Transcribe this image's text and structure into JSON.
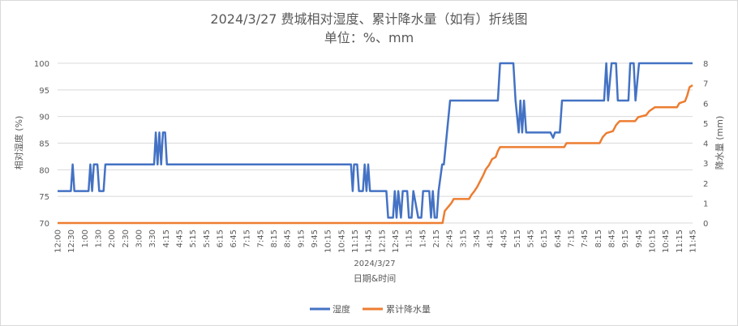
{
  "chart_data": {
    "type": "line",
    "title": "2024/3/27 费城相对湿度、累计降水量（如有）折线图",
    "subtitle": "单位：%、mm",
    "xlabel_group": "2024/3/27",
    "xlabel": "日期&时间",
    "ylabel_left": "相对湿度 (%)",
    "ylabel_right": "降水量 (mm)",
    "ylim_left": [
      70,
      100
    ],
    "ylim_right": [
      0,
      8
    ],
    "y_ticks_left": [
      "70",
      "75",
      "80",
      "85",
      "90",
      "95",
      "100"
    ],
    "y_ticks_right": [
      "0",
      "1",
      "2",
      "3",
      "4",
      "5",
      "6",
      "7",
      "8"
    ],
    "x_ticks": [
      "12:00",
      "12:30",
      "1:00",
      "1:30",
      "2:00",
      "2:30",
      "3:00",
      "3:30",
      "4:15",
      "4:45",
      "5:15",
      "5:45",
      "6:15",
      "6:45",
      "7:15",
      "7:45",
      "8:15",
      "8:45",
      "9:15",
      "9:45",
      "10:15",
      "10:45",
      "11:15",
      "11:45",
      "12:15",
      "12:45",
      "1:15",
      "1:45",
      "2:15",
      "2:45",
      "3:15",
      "3:45",
      "4:15",
      "4:45",
      "5:15",
      "5:45",
      "6:15",
      "6:45",
      "7:15",
      "7:45",
      "8:15",
      "8:45",
      "9:15",
      "9:45",
      "10:15",
      "10:45",
      "11:15",
      "11:45"
    ],
    "x_minutes_range": [
      0,
      1435
    ],
    "grid": true,
    "legend_position": "bottom",
    "series": [
      {
        "name": "湿度",
        "axis": "left",
        "color": "#4472c4",
        "points": [
          [
            0,
            76
          ],
          [
            30,
            76
          ],
          [
            34,
            81
          ],
          [
            38,
            76
          ],
          [
            70,
            76
          ],
          [
            74,
            81
          ],
          [
            78,
            76
          ],
          [
            82,
            81
          ],
          [
            90,
            81
          ],
          [
            94,
            76
          ],
          [
            104,
            76
          ],
          [
            108,
            81
          ],
          [
            218,
            81
          ],
          [
            222,
            87
          ],
          [
            226,
            81
          ],
          [
            230,
            87
          ],
          [
            234,
            81
          ],
          [
            238,
            87
          ],
          [
            243,
            87
          ],
          [
            247,
            81
          ],
          [
            613,
            81
          ],
          [
            647,
            81
          ],
          [
            663,
            81
          ],
          [
            667,
            76
          ],
          [
            670,
            81
          ],
          [
            677,
            81
          ],
          [
            681,
            76
          ],
          [
            690,
            76
          ],
          [
            694,
            81
          ],
          [
            698,
            76
          ],
          [
            702,
            81
          ],
          [
            706,
            76
          ],
          [
            743,
            76
          ],
          [
            747,
            71
          ],
          [
            758,
            71
          ],
          [
            762,
            76
          ],
          [
            766,
            71
          ],
          [
            770,
            76
          ],
          [
            776,
            71
          ],
          [
            780,
            76
          ],
          [
            790,
            76
          ],
          [
            794,
            71
          ],
          [
            800,
            71
          ],
          [
            804,
            76
          ],
          [
            815,
            71
          ],
          [
            822,
            71
          ],
          [
            826,
            76
          ],
          [
            840,
            76
          ],
          [
            844,
            71
          ],
          [
            848,
            76
          ],
          [
            852,
            71
          ],
          [
            857,
            71
          ],
          [
            861,
            76
          ],
          [
            869,
            81
          ],
          [
            873,
            81
          ],
          [
            887,
            93
          ],
          [
            995,
            93
          ],
          [
            1000,
            100
          ],
          [
            1030,
            100
          ],
          [
            1035,
            93
          ],
          [
            1042,
            87
          ],
          [
            1046,
            93
          ],
          [
            1050,
            87
          ],
          [
            1054,
            93
          ],
          [
            1059,
            87
          ],
          [
            1114,
            87
          ],
          [
            1120,
            86
          ],
          [
            1124,
            87
          ],
          [
            1135,
            87
          ],
          [
            1140,
            93
          ],
          [
            1235,
            93
          ],
          [
            1240,
            100
          ],
          [
            1244,
            93
          ],
          [
            1252,
            100
          ],
          [
            1262,
            100
          ],
          [
            1266,
            93
          ],
          [
            1290,
            93
          ],
          [
            1294,
            100
          ],
          [
            1302,
            100
          ],
          [
            1306,
            93
          ],
          [
            1314,
            100
          ],
          [
            1435,
            100
          ]
        ]
      },
      {
        "name": "累计降水量",
        "axis": "right",
        "color": "#ed7d31",
        "points": [
          [
            0,
            0
          ],
          [
            843,
            0
          ],
          [
            870,
            0
          ],
          [
            875,
            0.6
          ],
          [
            890,
            1
          ],
          [
            895,
            1.2
          ],
          [
            930,
            1.2
          ],
          [
            935,
            1.4
          ],
          [
            942,
            1.6
          ],
          [
            948,
            1.8
          ],
          [
            955,
            2.1
          ],
          [
            962,
            2.4
          ],
          [
            968,
            2.7
          ],
          [
            975,
            2.9
          ],
          [
            982,
            3.2
          ],
          [
            990,
            3.3
          ],
          [
            995,
            3.6
          ],
          [
            1000,
            3.8
          ],
          [
            1145,
            3.8
          ],
          [
            1150,
            4
          ],
          [
            1225,
            4
          ],
          [
            1232,
            4.3
          ],
          [
            1240,
            4.5
          ],
          [
            1255,
            4.6
          ],
          [
            1262,
            4.9
          ],
          [
            1270,
            5.1
          ],
          [
            1305,
            5.1
          ],
          [
            1312,
            5.3
          ],
          [
            1330,
            5.4
          ],
          [
            1337,
            5.6
          ],
          [
            1350,
            5.8
          ],
          [
            1400,
            5.8
          ],
          [
            1405,
            6
          ],
          [
            1418,
            6.1
          ],
          [
            1423,
            6.4
          ],
          [
            1428,
            6.8
          ],
          [
            1435,
            6.9
          ]
        ]
      }
    ]
  }
}
